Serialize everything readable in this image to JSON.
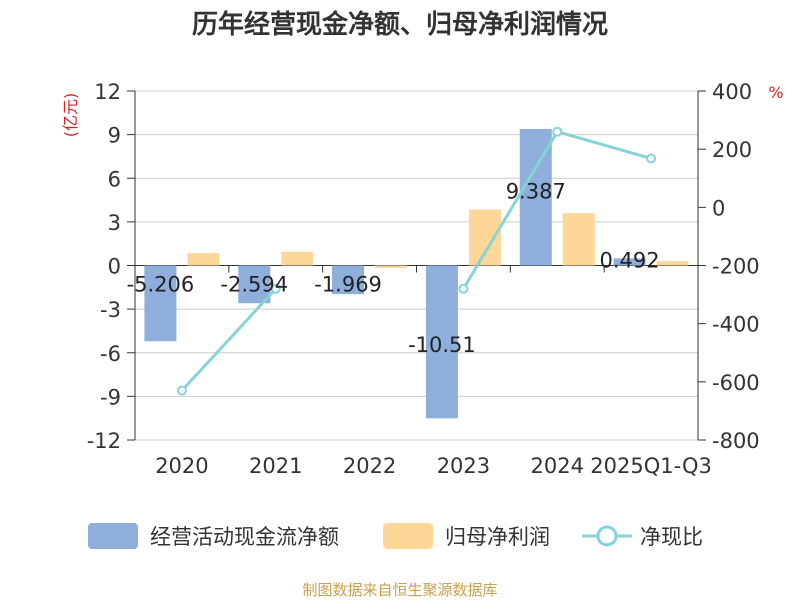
{
  "chart_data": {
    "type": "bar",
    "title": "历年经营现金净额、归母净利润情况",
    "categories": [
      "2020",
      "2021",
      "2022",
      "2023",
      "2024",
      "2025Q1-Q3"
    ],
    "left_axis": {
      "label": "(亿元)",
      "ylim": [
        -12,
        12
      ],
      "ticks": [
        12,
        9,
        6,
        3,
        0,
        -3,
        -6,
        -9,
        -12
      ]
    },
    "right_axis": {
      "label": "%",
      "ylim": [
        -800,
        400
      ],
      "ticks": [
        400,
        200,
        0,
        -200,
        -400,
        -600,
        -800
      ]
    },
    "series": [
      {
        "name": "经营活动现金流净额",
        "type": "bar",
        "axis": "left",
        "color": "#8eaedb",
        "values": [
          -5.206,
          -2.594,
          -1.969,
          -10.51,
          9.387,
          0.492
        ],
        "labels": [
          "-5.206",
          "-2.594",
          "-1.969",
          "-10.51",
          "9.387",
          "0.492"
        ]
      },
      {
        "name": "归母净利润",
        "type": "bar",
        "axis": "left",
        "color": "#fdd797",
        "values": [
          0.85,
          0.95,
          -0.18,
          3.85,
          3.6,
          0.3
        ]
      },
      {
        "name": "净现比",
        "type": "line",
        "axis": "right",
        "color": "#88d3d7",
        "values": [
          -630,
          -280,
          null,
          -280,
          260,
          168
        ]
      }
    ]
  },
  "source_note": "制图数据来自恒生聚源数据库"
}
